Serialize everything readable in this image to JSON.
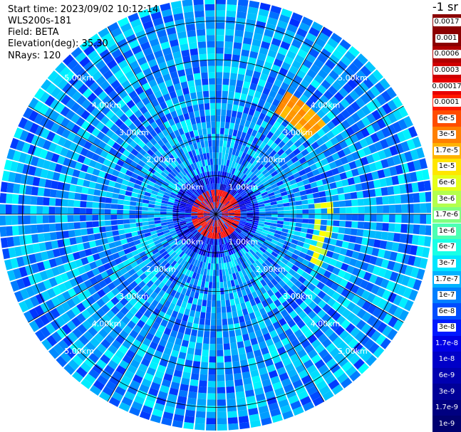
{
  "header": {
    "start_time": "Start time: 2023/09/02 10:12:14",
    "instrument": "WLS200s-181",
    "field": "Field: BETA",
    "elevation": "Elevation(deg): 35.30",
    "nrays": "NRays: 120"
  },
  "colorbar": {
    "title": "-1 sr",
    "labels": [
      "0.0017",
      "0.001",
      "0.0006",
      "0.0003",
      "0.00017",
      "0.0001",
      "6e-5",
      "3e-5",
      "1.7e-5",
      "1e-5",
      "6e-6",
      "3e-6",
      "1.7e-6",
      "1e-6",
      "6e-7",
      "3e-7",
      "1.7e-7",
      "1e-7",
      "6e-8",
      "3e-8",
      "1.7e-8",
      "1e-8",
      "6e-9",
      "3e-9",
      "1.7e-9",
      "1e-9"
    ],
    "colors": [
      "#8b0000",
      "#8b0000",
      "#b00000",
      "#d00000",
      "#e80000",
      "#ff1a00",
      "#ff4d00",
      "#ff8000",
      "#ffb300",
      "#ffe600",
      "#e6ff19",
      "#b3ff4d",
      "#80ff80",
      "#4dffb3",
      "#19ffe6",
      "#00e6ff",
      "#00b3ff",
      "#0080ff",
      "#004dff",
      "#0019ff",
      "#0000e6",
      "#0000c8",
      "#0000b0",
      "#000098",
      "#000080",
      "#000070"
    ]
  },
  "chart_data": {
    "type": "heatmap",
    "projection": "polar PPI",
    "nrays": 120,
    "range_rings_km": [
      1.0,
      2.0,
      3.0,
      4.0,
      5.0
    ],
    "range_labels": [
      "1.00km",
      "2.00km",
      "3.00km",
      "4.00km",
      "5.00km"
    ],
    "max_range_km": 5.6,
    "field": "BETA",
    "units": "-1 sr",
    "color_scale": "log",
    "range": [
      1e-09,
      0.0017
    ],
    "features": [
      {
        "description": "high backscatter ring",
        "range_km": [
          0.2,
          0.6
        ],
        "value": 0.0003
      },
      {
        "description": "arc NE",
        "azimuth_deg": [
          30,
          50
        ],
        "range_km": [
          3.0,
          3.6
        ],
        "value": 3e-05
      },
      {
        "description": "arc E",
        "azimuth_deg": [
          85,
          118
        ],
        "range_km": [
          2.5,
          3.0
        ],
        "value": 6e-06
      }
    ]
  }
}
